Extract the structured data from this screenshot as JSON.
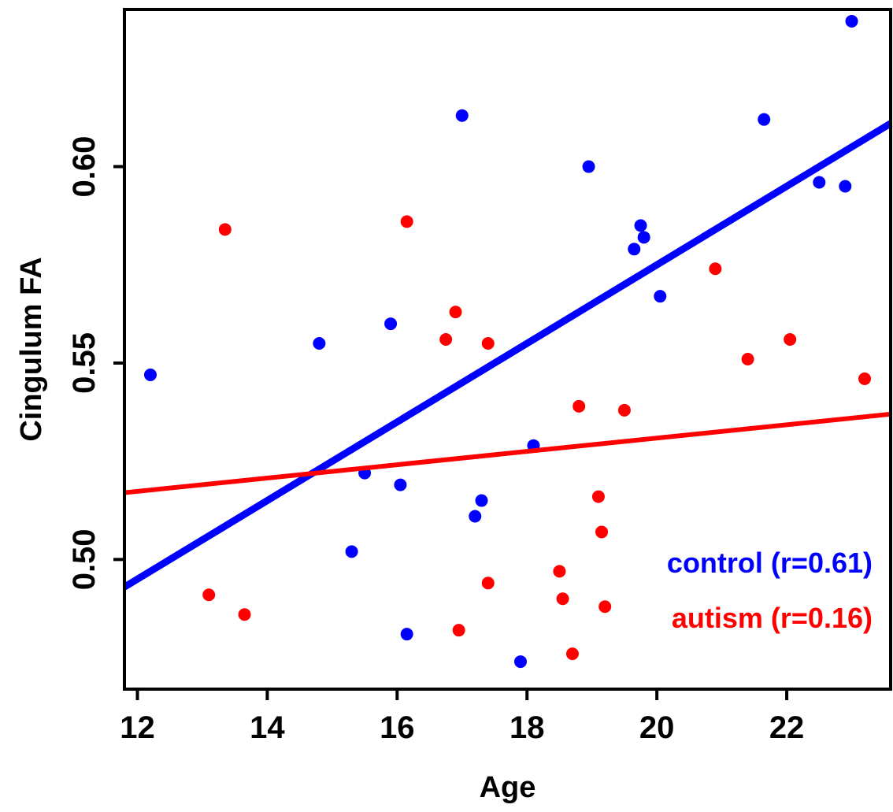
{
  "chart_data": {
    "type": "scatter",
    "title": "",
    "xlabel": "Age",
    "ylabel": "Cingulum FA",
    "xlim": [
      11.8,
      23.6
    ],
    "ylim": [
      0.467,
      0.64
    ],
    "x_ticks": [
      12,
      14,
      16,
      18,
      20,
      22
    ],
    "y_ticks": [
      0.5,
      0.55,
      0.6
    ],
    "x_tick_labels": [
      "12",
      "14",
      "16",
      "18",
      "20",
      "22"
    ],
    "y_tick_labels": [
      "0.50",
      "0.55",
      "0.60"
    ],
    "grid": false,
    "legend_position": "bottom-right",
    "series": [
      {
        "name": "control (r=0.61)",
        "color": "#0000ff",
        "points": [
          {
            "x": 12.2,
            "y": 0.547
          },
          {
            "x": 14.8,
            "y": 0.555
          },
          {
            "x": 15.3,
            "y": 0.502
          },
          {
            "x": 15.5,
            "y": 0.522
          },
          {
            "x": 15.9,
            "y": 0.56
          },
          {
            "x": 16.05,
            "y": 0.519
          },
          {
            "x": 16.15,
            "y": 0.481
          },
          {
            "x": 17.0,
            "y": 0.613
          },
          {
            "x": 17.2,
            "y": 0.511
          },
          {
            "x": 17.3,
            "y": 0.515
          },
          {
            "x": 17.9,
            "y": 0.474
          },
          {
            "x": 18.1,
            "y": 0.529
          },
          {
            "x": 18.95,
            "y": 0.6
          },
          {
            "x": 19.65,
            "y": 0.579
          },
          {
            "x": 19.75,
            "y": 0.585
          },
          {
            "x": 19.8,
            "y": 0.582
          },
          {
            "x": 20.05,
            "y": 0.567
          },
          {
            "x": 21.65,
            "y": 0.612
          },
          {
            "x": 22.5,
            "y": 0.596
          },
          {
            "x": 22.9,
            "y": 0.595
          },
          {
            "x": 23.0,
            "y": 0.637
          }
        ],
        "fit": [
          {
            "x": 11.8,
            "y": 0.493
          },
          {
            "x": 23.6,
            "y": 0.611
          }
        ]
      },
      {
        "name": "autism (r=0.16)",
        "color": "#ff0000",
        "points": [
          {
            "x": 13.1,
            "y": 0.491
          },
          {
            "x": 13.35,
            "y": 0.584
          },
          {
            "x": 13.65,
            "y": 0.486
          },
          {
            "x": 16.15,
            "y": 0.586
          },
          {
            "x": 16.75,
            "y": 0.556
          },
          {
            "x": 16.9,
            "y": 0.563
          },
          {
            "x": 16.95,
            "y": 0.482
          },
          {
            "x": 17.4,
            "y": 0.555
          },
          {
            "x": 17.4,
            "y": 0.494
          },
          {
            "x": 18.5,
            "y": 0.497
          },
          {
            "x": 18.55,
            "y": 0.49
          },
          {
            "x": 18.7,
            "y": 0.476
          },
          {
            "x": 18.8,
            "y": 0.539
          },
          {
            "x": 19.1,
            "y": 0.516
          },
          {
            "x": 19.15,
            "y": 0.507
          },
          {
            "x": 19.2,
            "y": 0.488
          },
          {
            "x": 19.5,
            "y": 0.538
          },
          {
            "x": 20.9,
            "y": 0.574
          },
          {
            "x": 21.4,
            "y": 0.551
          },
          {
            "x": 22.05,
            "y": 0.556
          },
          {
            "x": 23.2,
            "y": 0.546
          }
        ],
        "fit": [
          {
            "x": 11.8,
            "y": 0.517
          },
          {
            "x": 23.6,
            "y": 0.537
          }
        ]
      }
    ]
  }
}
